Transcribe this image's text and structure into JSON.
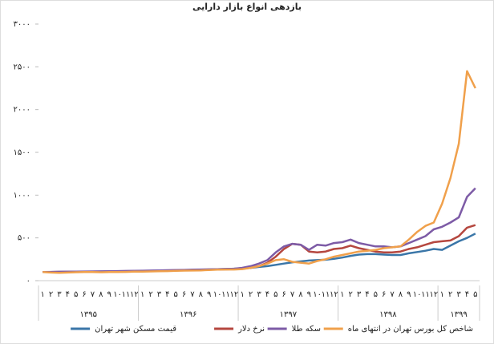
{
  "chart_data": {
    "type": "line",
    "title": "بازدهی انواع بازار دارایی",
    "categories": [
      "۱",
      "۲",
      "۳",
      "۴",
      "۵",
      "۶",
      "۷",
      "۸",
      "۹",
      "۱۰",
      "۱۱",
      "۱۲",
      "۱",
      "۲",
      "۳",
      "۴",
      "۵",
      "۶",
      "۷",
      "۸",
      "۹",
      "۱۰",
      "۱۱",
      "۱۲",
      "۱",
      "۲",
      "۳",
      "۴",
      "۵",
      "۶",
      "۷",
      "۸",
      "۹",
      "۱۰",
      "۱۱",
      "۱۲",
      "۱",
      "۲",
      "۳",
      "۴",
      "۵",
      "۶",
      "۷",
      "۸",
      "۹",
      "۱۰",
      "۱۱",
      "۱۲",
      "۱",
      "۲",
      "۳",
      "۴",
      "۵"
    ],
    "year_labels": [
      "۱۳۹۵",
      "۱۳۹۶",
      "۱۳۹۷",
      "۱۳۹۸",
      "۱۳۹۹"
    ],
    "ylim": [
      0,
      3000
    ],
    "yticks": [
      {
        "value": 0,
        "label": "۰"
      },
      {
        "value": 500,
        "label": "۵۰۰"
      },
      {
        "value": 1000,
        "label": "۱۰۰۰"
      },
      {
        "value": 1500,
        "label": "۱۵۰۰"
      },
      {
        "value": 2000,
        "label": "۲۰۰۰"
      },
      {
        "value": 2500,
        "label": "۲۵۰۰"
      },
      {
        "value": 3000,
        "label": "۳۰۰۰"
      }
    ],
    "series": [
      {
        "name": "قیمت مسکن شهر تهران",
        "color": "#3a76a8",
        "values": [
          100,
          100,
          102,
          103,
          104,
          105,
          106,
          107,
          108,
          109,
          110,
          112,
          113,
          115,
          117,
          119,
          121,
          123,
          125,
          127,
          130,
          133,
          136,
          140,
          145,
          150,
          160,
          170,
          185,
          200,
          215,
          225,
          235,
          240,
          245,
          255,
          270,
          290,
          305,
          310,
          310,
          305,
          300,
          300,
          320,
          335,
          350,
          370,
          360,
          410,
          460,
          500,
          550
        ]
      },
      {
        "name": "نرخ دلار",
        "color": "#b5473f",
        "values": [
          100,
          101,
          102,
          103,
          104,
          105,
          105,
          106,
          107,
          108,
          109,
          110,
          112,
          114,
          116,
          118,
          120,
          122,
          124,
          126,
          128,
          130,
          132,
          135,
          140,
          150,
          170,
          210,
          280,
          370,
          430,
          420,
          340,
          330,
          340,
          370,
          380,
          410,
          380,
          360,
          340,
          330,
          330,
          340,
          370,
          390,
          420,
          450,
          460,
          470,
          520,
          620,
          650
        ]
      },
      {
        "name": "سکه طلا",
        "color": "#7d5ba6",
        "values": [
          100,
          102,
          104,
          105,
          106,
          107,
          108,
          109,
          110,
          112,
          113,
          115,
          116,
          118,
          120,
          122,
          124,
          126,
          128,
          130,
          132,
          134,
          137,
          140,
          150,
          170,
          200,
          240,
          330,
          400,
          430,
          420,
          360,
          420,
          410,
          440,
          450,
          480,
          440,
          420,
          400,
          400,
          390,
          400,
          440,
          480,
          520,
          600,
          630,
          680,
          740,
          980,
          1080
        ]
      },
      {
        "name": "شاخص کل بورس تهران در انتهای ماه",
        "color": "#f0a04b",
        "values": [
          100,
          95,
          92,
          95,
          98,
          100,
          100,
          98,
          100,
          100,
          102,
          105,
          105,
          108,
          110,
          112,
          115,
          117,
          118,
          120,
          125,
          128,
          130,
          130,
          135,
          150,
          170,
          200,
          240,
          250,
          220,
          210,
          200,
          230,
          250,
          280,
          300,
          320,
          340,
          350,
          360,
          380,
          390,
          400,
          480,
          570,
          640,
          680,
          900,
          1200,
          1600,
          2450,
          2250
        ]
      }
    ]
  }
}
